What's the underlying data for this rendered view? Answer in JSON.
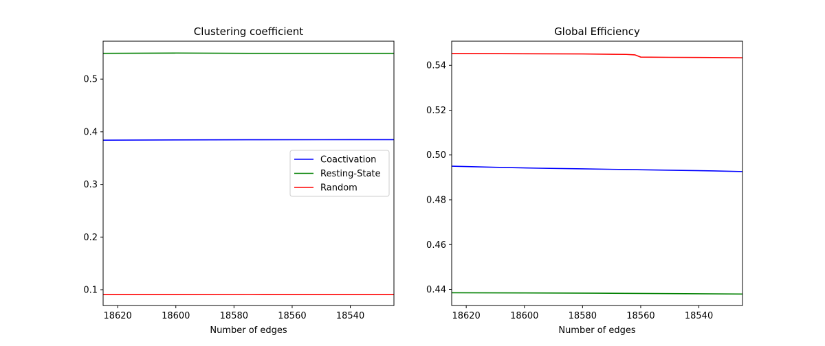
{
  "figure": {
    "background": "#ffffff"
  },
  "chart_data": [
    {
      "type": "line",
      "title": "Clustering coefficient",
      "xlabel": "Number of edges",
      "ylabel": "",
      "xlim": [
        18625,
        18525
      ],
      "ylim": [
        0.07,
        0.572
      ],
      "x_ticks": [
        18620,
        18600,
        18580,
        18560,
        18540
      ],
      "y_ticks": [
        0.1,
        0.2,
        0.3,
        0.4,
        0.5
      ],
      "grid": false,
      "legend": "center-right",
      "series": [
        {
          "name": "Coactivation",
          "color": "#0000ff",
          "points": [
            [
              18625,
              0.384
            ],
            [
              18600,
              0.3845
            ],
            [
              18575,
              0.3848
            ],
            [
              18550,
              0.3849
            ],
            [
              18525,
              0.385
            ]
          ]
        },
        {
          "name": "Resting-State",
          "color": "#008000",
          "points": [
            [
              18625,
              0.549
            ],
            [
              18600,
              0.5495
            ],
            [
              18575,
              0.549
            ],
            [
              18550,
              0.549
            ],
            [
              18525,
              0.549
            ]
          ]
        },
        {
          "name": "Random",
          "color": "#ff0000",
          "points": [
            [
              18625,
              0.091
            ],
            [
              18600,
              0.091
            ],
            [
              18575,
              0.0912
            ],
            [
              18550,
              0.091
            ],
            [
              18525,
              0.091
            ]
          ]
        }
      ]
    },
    {
      "type": "line",
      "title": "Global Efficiency",
      "xlabel": "Number of edges",
      "ylabel": "",
      "xlim": [
        18625,
        18525
      ],
      "ylim": [
        0.4328,
        0.5508
      ],
      "x_ticks": [
        18620,
        18600,
        18580,
        18560,
        18540
      ],
      "y_ticks": [
        0.44,
        0.46,
        0.48,
        0.5,
        0.52,
        0.54
      ],
      "grid": false,
      "legend": "none",
      "series": [
        {
          "name": "Coactivation",
          "color": "#0000ff",
          "points": [
            [
              18625,
              0.495
            ],
            [
              18610,
              0.4945
            ],
            [
              18595,
              0.4941
            ],
            [
              18580,
              0.4938
            ],
            [
              18565,
              0.4935
            ],
            [
              18550,
              0.4932
            ],
            [
              18535,
              0.4929
            ],
            [
              18525,
              0.4926
            ]
          ]
        },
        {
          "name": "Resting-State",
          "color": "#008000",
          "points": [
            [
              18625,
              0.4385
            ],
            [
              18600,
              0.4384
            ],
            [
              18575,
              0.4383
            ],
            [
              18550,
              0.4381
            ],
            [
              18525,
              0.4379
            ]
          ]
        },
        {
          "name": "Random",
          "color": "#ff0000",
          "points": [
            [
              18625,
              0.5453
            ],
            [
              18600,
              0.5452
            ],
            [
              18580,
              0.5451
            ],
            [
              18565,
              0.5449
            ],
            [
              18562,
              0.5447
            ],
            [
              18560,
              0.5437
            ],
            [
              18550,
              0.5436
            ],
            [
              18535,
              0.5435
            ],
            [
              18525,
              0.5434
            ]
          ]
        }
      ]
    }
  ]
}
